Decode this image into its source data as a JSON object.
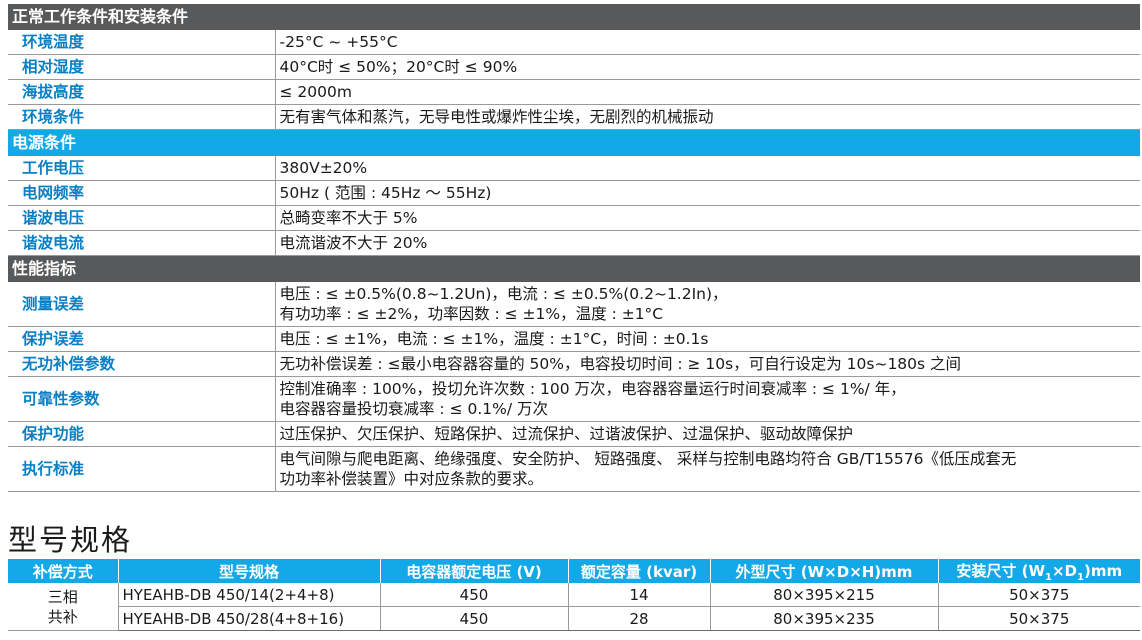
{
  "sections": [
    {
      "title": "正常工作条件和安装条件",
      "color": "gray",
      "rows": [
        {
          "label": "环境温度",
          "value": "-25°C ~ +55°C"
        },
        {
          "label": "相对湿度",
          "value": "40°C时 ≤ 50%；20°C时 ≤ 90%"
        },
        {
          "label": "海拔高度",
          "value": "≤ 2000m"
        },
        {
          "label": "环境条件",
          "value": "无有害气体和蒸汽，无导电性或爆炸性尘埃，无剧烈的机械振动"
        }
      ]
    },
    {
      "title": "电源条件",
      "color": "blue",
      "rows": [
        {
          "label": "工作电压",
          "value": "380V±20%"
        },
        {
          "label": "电网频率",
          "value": "50Hz ( 范围 : 45Hz ～ 55Hz)"
        },
        {
          "label": "谐波电压",
          "value": "总畸变率不大于 5%"
        },
        {
          "label": "谐波电流",
          "value": "电流谐波不大于 20%"
        }
      ]
    },
    {
      "title": "性能指标",
      "color": "gray",
      "rows": [
        {
          "label": "测量误差",
          "value": "电压 : ≤ ±0.5%(0.8~1.2Un)，电流 : ≤ ±0.5%(0.2~1.2In)，",
          "value2": "有功功率 : ≤ ±2%，功率因数 : ≤ ±1%，温度 : ±1°C"
        },
        {
          "label": "保护误差",
          "value": "电压 : ≤ ±1%，电流 : ≤ ±1%，温度 : ±1°C，时间 : ±0.1s"
        },
        {
          "label": "无功补偿参数",
          "value": "无功补偿误差 : ≤最小电容器容量的 50%，电容投切时间 : ≥ 10s，可自行设定为 10s~180s 之间"
        },
        {
          "label": "可靠性参数",
          "value": "控制准确率 : 100%，投切允许次数 : 100 万次，电容器容量运行时间衰减率 : ≤ 1%/ 年，",
          "value2": "电容器容量投切衰减率 : ≤ 0.1%/ 万次"
        },
        {
          "label": "保护功能",
          "value": "过压保护、欠压保护、短路保护、过流保护、过谐波保护、过温保护、驱动故障保护"
        },
        {
          "label": "执行标准",
          "value": "电气间隙与爬电距离、绝缘强度、安全防护、 短路强度、 采样与控制电路均符合 GB/T15576《低压成套无",
          "value2": "功功率补偿装置》中对应条款的要求。"
        }
      ]
    }
  ],
  "model_spec": {
    "heading": "型号规格",
    "headers": [
      "补偿方式",
      "型号规格",
      "电容器额定电压 (V)",
      "额定容量 (kvar)",
      "外型尺寸 (W×D×H)mm",
      "安装尺寸 (W",
      "1",
      "×D",
      "1",
      ")mm"
    ],
    "phase_line1": "三相",
    "phase_line2": "共补",
    "rows": [
      {
        "model": "HYEAHB-DB  450/14(2+4+8)",
        "voltage": "450",
        "capacity": "14",
        "outer": "80×395×215",
        "install": "50×375"
      },
      {
        "model": "HYEAHB-DB  450/28(4+8+16)",
        "voltage": "450",
        "capacity": "28",
        "outer": "80×395×235",
        "install": "50×375"
      }
    ]
  },
  "colors": {
    "blue": "#13a9e8",
    "gray": "#58595b",
    "label_blue": "#0a7fc4"
  }
}
